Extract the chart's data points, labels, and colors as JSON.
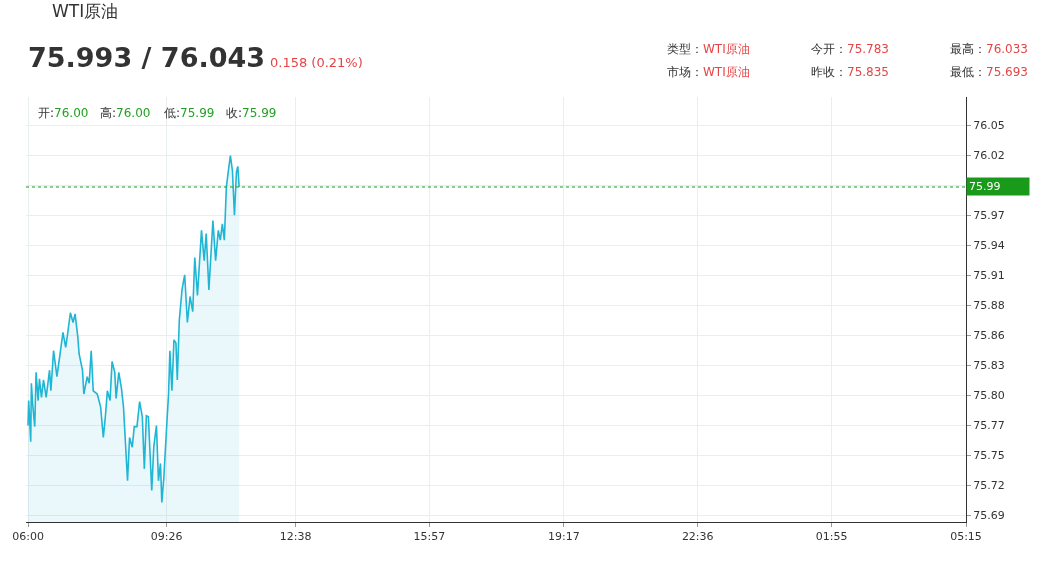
{
  "chart_data": {
    "type": "area",
    "title": "WTI原油",
    "subtitle": "75.993 / 76.043",
    "annotations": [
      "0.158 (0.21%)",
      "类型：WTI原油",
      "市场：WTI原油",
      "今开：75.783",
      "昨收：75.835",
      "最高：76.033",
      "最低：75.693",
      "开:76.00",
      "高:76.00",
      "低:75.99",
      "收:75.99"
    ],
    "x": [
      "--01-01T06:00",
      "--01-01T06:01",
      "--01-01T06:04",
      "--01-01T06:05",
      "--01-01T06:07",
      "--01-01T06:10",
      "--01-01T06:12",
      "--01-01T06:15",
      "--01-01T06:17",
      "--01-01T06:20",
      "--01-01T06:23",
      "--01-01T06:27",
      "--01-01T06:32",
      "--01-01T06:34",
      "--01-01T06:38",
      "--01-01T06:43",
      "--01-01T06:47",
      "--01-01T06:52",
      "--01-01T06:56",
      "--01-01T06:59",
      "--01-01T07:03",
      "--01-01T07:07",
      "--01-01T07:10",
      "--01-01T07:14",
      "--01-01T07:16",
      "--01-01T07:21",
      "--01-01T07:23",
      "--01-01T07:28",
      "--01-01T07:31",
      "--01-01T07:34",
      "--01-01T07:37",
      "--01-01T07:43",
      "--01-01T07:48",
      "--01-01T07:52",
      "--01-01T07:55",
      "--01-01T07:58",
      "--01-01T08:02",
      "--01-01T08:05",
      "--01-01T08:09",
      "--01-01T08:11",
      "--01-01T08:15",
      "--01-01T08:19",
      "--01-01T08:22",
      "--01-01T08:25",
      "--01-01T08:28",
      "--01-01T08:31",
      "--01-01T08:35",
      "--01-01T08:38",
      "--01-01T08:42",
      "--01-01T08:46",
      "--01-01T08:50",
      "--01-01T08:53",
      "--01-01T08:56",
      "--01-01T08:59",
      "--01-01T09:04",
      "--01-01T09:07",
      "--01-01T09:11",
      "--01-01T09:14",
      "--01-01T09:17",
      "--01-01T09:19",
      "--01-01T09:22",
      "--01-01T09:25",
      "--01-01T09:29",
      "--01-01T09:31",
      "--01-01T09:34",
      "--01-01T09:37",
      "--01-01T09:40",
      "--01-01T09:42",
      "--01-01T09:45",
      "--01-01T09:49",
      "--01-01T09:53",
      "--01-01T09:57",
      "--01-01T10:01",
      "--01-01T10:05",
      "--01-01T10:08",
      "--01-01T10:12",
      "--01-01T10:18",
      "--01-01T10:22",
      "--01-01T10:25",
      "--01-01T10:29",
      "--01-01T10:35",
      "--01-01T10:39",
      "--01-01T10:43",
      "--01-01T10:46",
      "--01-01T10:49",
      "--01-01T10:52",
      "--01-01T10:55",
      "--01-01T10:58",
      "--01-01T11:01",
      "--01-01T11:04",
      "--01-01T11:07",
      "--01-01T11:10",
      "--01-01T11:12",
      "--01-01T11:14"
    ],
    "series": [
      {
        "color": "#1fb5d4",
        "values": [
          75.773,
          75.796,
          75.758,
          75.812,
          75.792,
          75.772,
          75.822,
          75.796,
          75.816,
          75.799,
          75.815,
          75.799,
          75.824,
          75.805,
          75.842,
          75.818,
          75.836,
          75.859,
          75.845,
          75.858,
          75.877,
          75.868,
          75.876,
          75.855,
          75.839,
          75.824,
          75.802,
          75.818,
          75.812,
          75.842,
          75.805,
          75.802,
          75.79,
          75.762,
          75.781,
          75.805,
          75.796,
          75.832,
          75.822,
          75.798,
          75.822,
          75.807,
          75.79,
          75.756,
          75.722,
          75.762,
          75.753,
          75.772,
          75.772,
          75.795,
          75.781,
          75.733,
          75.782,
          75.781,
          75.713,
          75.753,
          75.773,
          75.722,
          75.738,
          75.702,
          75.725,
          75.759,
          75.802,
          75.842,
          75.805,
          75.852,
          75.849,
          75.815,
          75.87,
          75.898,
          75.912,
          75.868,
          75.892,
          75.878,
          75.928,
          75.893,
          75.953,
          75.925,
          75.95,
          75.898,
          75.962,
          75.925,
          75.953,
          75.944,
          75.959,
          75.944,
          75.993,
          76.008,
          76.022,
          76.008,
          75.967,
          76.007,
          76.012,
          75.993
        ]
      }
    ],
    "xlim": [
      "--01-01T05:57",
      "--01-02T05:15"
    ],
    "xticks": [
      {
        "value": "--01-01T06:00",
        "label": "06:00"
      },
      {
        "value": "--01-01T09:26",
        "label": "09:26"
      },
      {
        "value": "--01-01T12:38",
        "label": "12:38"
      },
      {
        "value": "--01-01T15:57",
        "label": "15:57"
      },
      {
        "value": "--01-01T19:17",
        "label": "19:17"
      },
      {
        "value": "--01-01T22:36",
        "label": "22:36"
      },
      {
        "value": "--01-02T01:55",
        "label": "01:55"
      },
      {
        "value": "--01-02T05:15",
        "label": "05:15"
      }
    ],
    "ylim": [
      75.684,
      76.076
    ],
    "yticks": [
      {
        "value": 75.69,
        "label": "75.69"
      },
      {
        "value": 75.7177,
        "label": "75.72"
      },
      {
        "value": 75.7454,
        "label": "75.75"
      },
      {
        "value": 75.7731,
        "label": "75.77"
      },
      {
        "value": 75.8008,
        "label": "75.80"
      },
      {
        "value": 75.8285,
        "label": "75.83"
      },
      {
        "value": 75.8562,
        "label": "75.86"
      },
      {
        "value": 75.8838,
        "label": "75.88"
      },
      {
        "value": 75.9115,
        "label": "75.91"
      },
      {
        "value": 75.9392,
        "label": "75.94"
      },
      {
        "value": 75.9669,
        "label": "75.97"
      },
      {
        "value": 75.9946,
        "label": null
      },
      {
        "value": 76.0223,
        "label": "76.02"
      },
      {
        "value": 76.05,
        "label": "76.05"
      }
    ],
    "ref_lines": [
      {
        "axis": "y",
        "value": 75.993,
        "label": "75.99",
        "color": "#1a9a1a",
        "line_style": "dotted"
      }
    ],
    "grid": true
  }
}
